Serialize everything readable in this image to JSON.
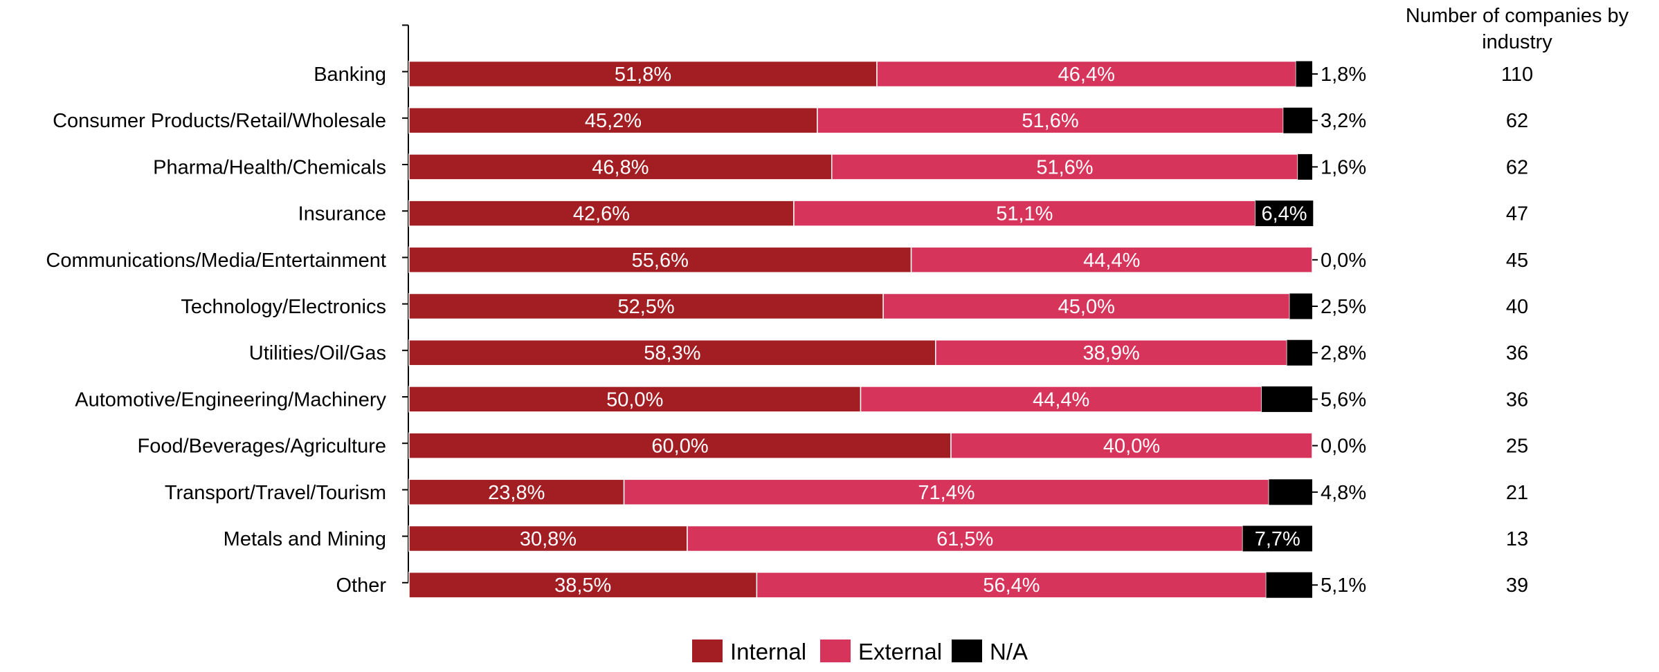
{
  "chart_data": {
    "type": "bar",
    "orientation": "horizontal",
    "stacked": true,
    "percent": true,
    "categories": [
      "Banking",
      "Consumer Products/Retail/Wholesale",
      "Pharma/Health/Chemicals",
      "Insurance",
      "Communications/Media/Entertainment",
      "Technology/Electronics",
      "Utilities/Oil/Gas",
      "Automotive/Engineering/Machinery",
      "Food/Beverages/Agriculture",
      "Transport/Travel/Tourism",
      "Metals and Mining",
      "Other"
    ],
    "series": [
      {
        "name": "Internal",
        "color": "#a21e23",
        "values": [
          51.8,
          45.2,
          46.8,
          42.6,
          55.6,
          52.5,
          58.3,
          50.0,
          60.0,
          23.8,
          30.8,
          38.5
        ],
        "labels": [
          "51,8%",
          "45,2%",
          "46,8%",
          "42,6%",
          "55,6%",
          "52,5%",
          "58,3%",
          "50,0%",
          "60,0%",
          "23,8%",
          "30,8%",
          "38,5%"
        ]
      },
      {
        "name": "External",
        "color": "#d6345a",
        "values": [
          46.4,
          51.6,
          51.6,
          51.1,
          44.4,
          45.0,
          38.9,
          44.4,
          40.0,
          71.4,
          61.5,
          56.4
        ],
        "labels": [
          "46,4%",
          "51,6%",
          "51,6%",
          "51,1%",
          "44,4%",
          "45,0%",
          "38,9%",
          "44,4%",
          "40,0%",
          "71,4%",
          "61,5%",
          "56,4%"
        ]
      },
      {
        "name": "N/A",
        "color": "#000000",
        "values": [
          1.8,
          3.2,
          1.6,
          6.4,
          0.0,
          2.5,
          2.8,
          5.6,
          0.0,
          4.8,
          7.7,
          5.1
        ],
        "labels": [
          "1,8%",
          "3,2%",
          "1,6%",
          "6,4%",
          "0,0%",
          "2,5%",
          "2,8%",
          "5,6%",
          "0,0%",
          "4,8%",
          "7,7%",
          "5,1%"
        ],
        "label_inside": [
          false,
          false,
          false,
          true,
          false,
          false,
          false,
          false,
          false,
          false,
          true,
          false
        ]
      }
    ],
    "counts": {
      "header": [
        "Number of companies by",
        "industry"
      ],
      "values": [
        "110",
        "62",
        "62",
        "47",
        "45",
        "40",
        "36",
        "36",
        "25",
        "21",
        "13",
        "39"
      ]
    },
    "xlim": [
      0,
      100
    ],
    "grid": false,
    "legend": "bottom-center"
  }
}
